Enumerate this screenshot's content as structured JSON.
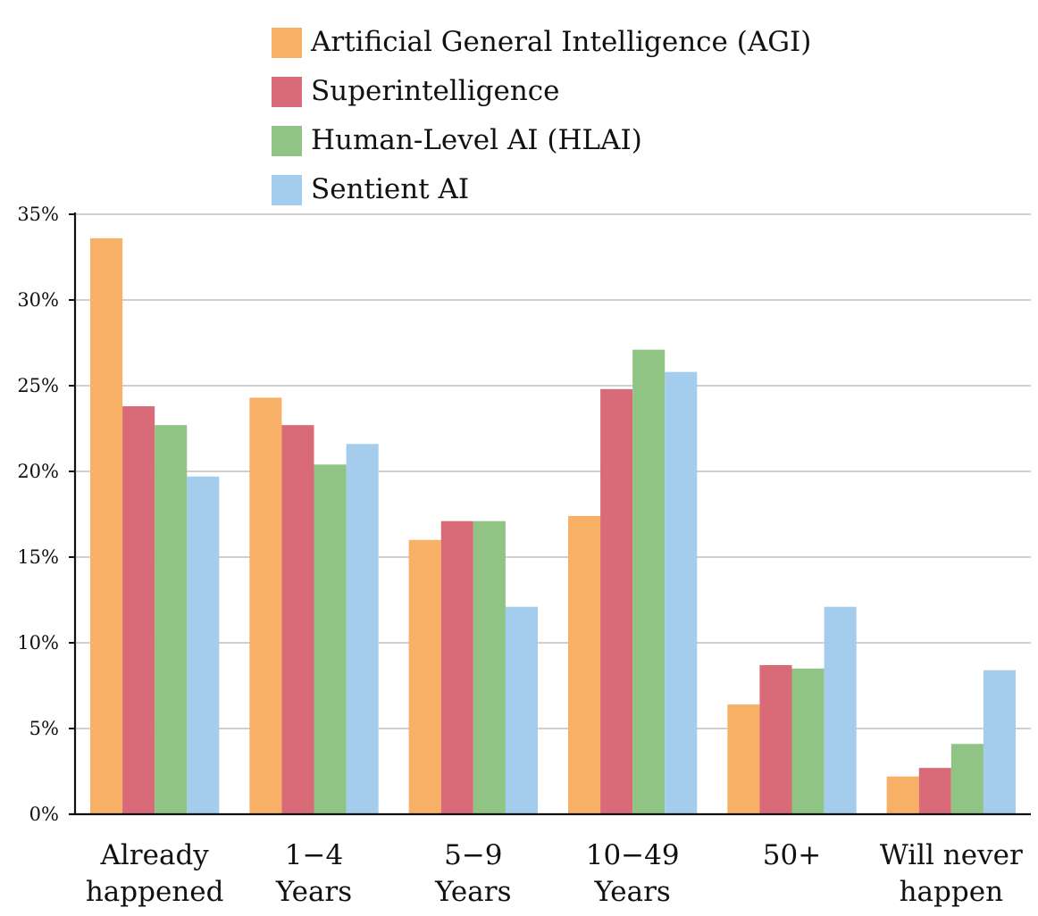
{
  "chart_data": {
    "type": "bar",
    "title": "",
    "xlabel": "",
    "ylabel": "",
    "categories": [
      [
        "Already",
        "happened"
      ],
      [
        "1−4",
        "Years"
      ],
      [
        "5−9",
        "Years"
      ],
      [
        "10−49",
        "Years"
      ],
      [
        "50+"
      ],
      [
        "Will never",
        "happen"
      ]
    ],
    "ylim": [
      0,
      35
    ],
    "yticks": [
      0,
      5,
      10,
      15,
      20,
      25,
      30,
      35
    ],
    "ytick_labels": [
      "0%",
      "5%",
      "10%",
      "15%",
      "20%",
      "25%",
      "30%",
      "35%"
    ],
    "grid": "horizontal",
    "legend_position": "top-center",
    "series": [
      {
        "name": "Artificial General Intelligence (AGI)",
        "color": "#f8b066",
        "values": [
          33.6,
          24.3,
          16.0,
          17.4,
          6.4,
          2.2
        ]
      },
      {
        "name": "Superintelligence",
        "color": "#d96b78",
        "values": [
          23.8,
          22.7,
          17.1,
          24.8,
          8.7,
          2.7
        ]
      },
      {
        "name": "Human-Level AI (HLAI)",
        "color": "#8fc484",
        "values": [
          22.7,
          20.4,
          17.1,
          27.1,
          8.5,
          4.1
        ]
      },
      {
        "name": "Sentient AI",
        "color": "#a3cced",
        "values": [
          19.7,
          21.6,
          12.1,
          25.8,
          12.1,
          8.4
        ]
      }
    ]
  }
}
